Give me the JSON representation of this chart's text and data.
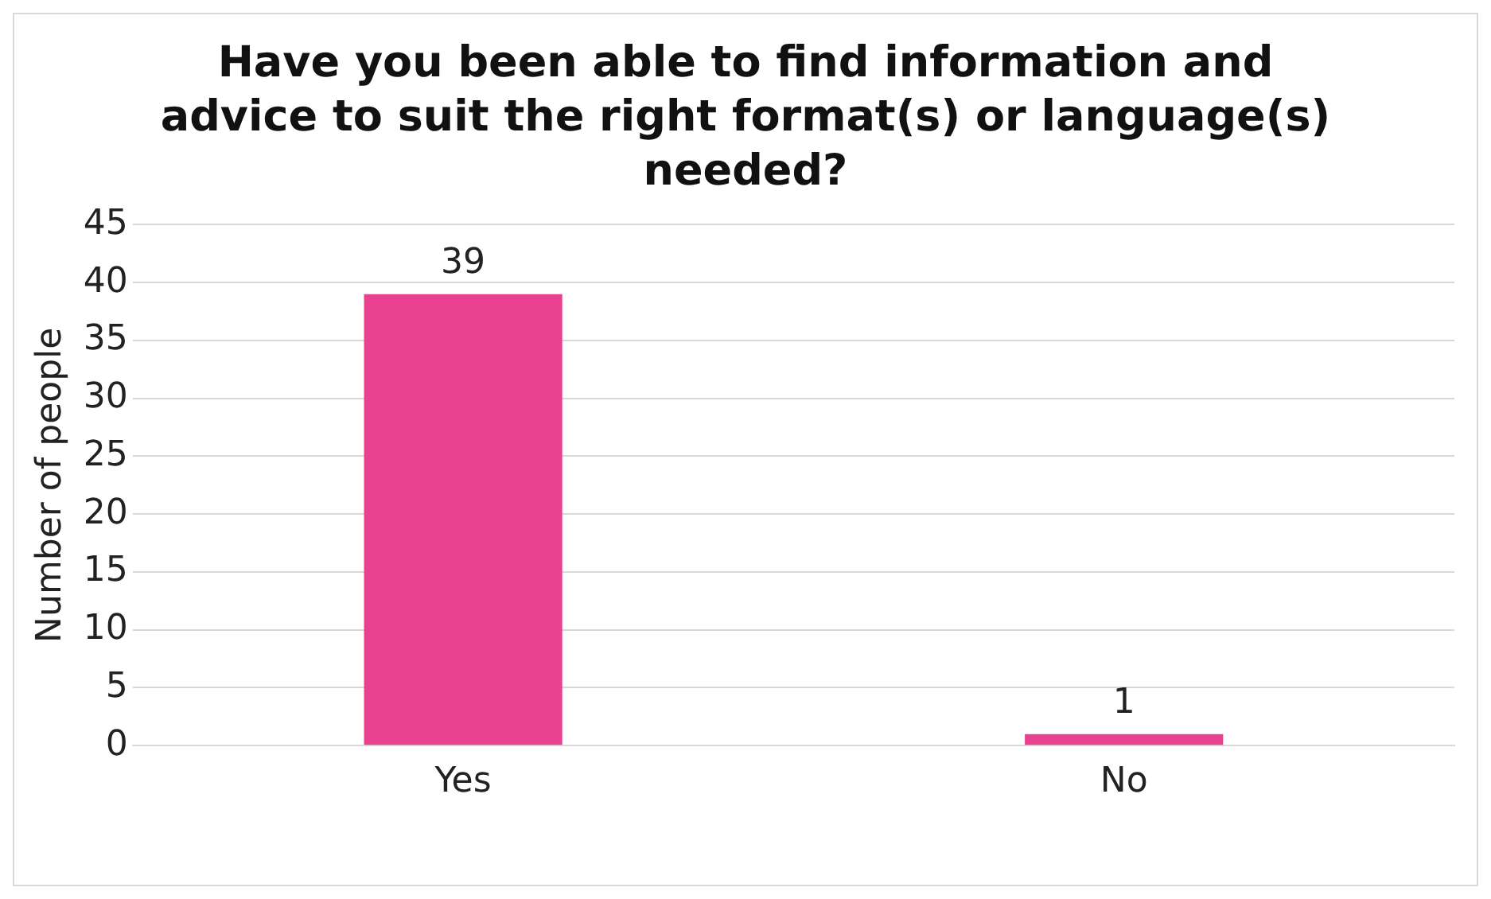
{
  "chart_data": {
    "type": "bar",
    "title": "Have you been able to find information and advice to suit the right format(s) or language(s) needed?",
    "ylabel": "Number of people",
    "categories": [
      "Yes",
      "No"
    ],
    "values": [
      39,
      1
    ],
    "color": "#e8418f",
    "ylim": [
      0,
      45
    ],
    "yticks": [
      0,
      5,
      10,
      15,
      20,
      25,
      30,
      35,
      40,
      45
    ],
    "grid": "y",
    "data_labels": true,
    "legend": false
  }
}
